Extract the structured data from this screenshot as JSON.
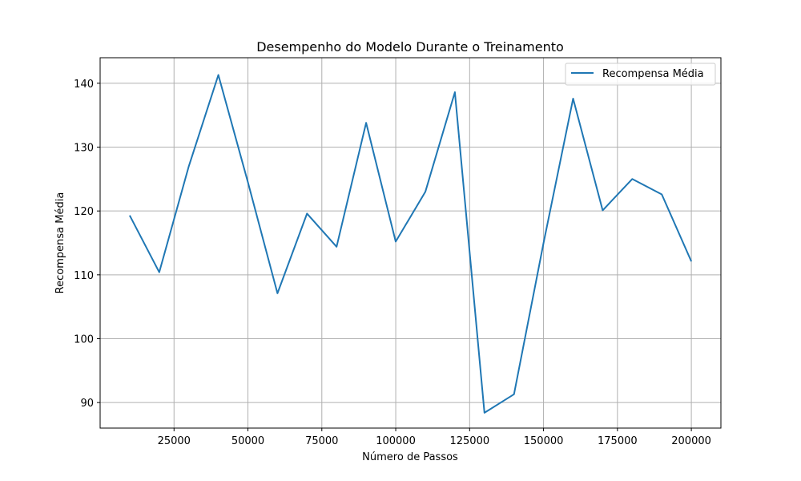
{
  "chart_data": {
    "type": "line",
    "title": "Desempenho do Modelo Durante o Treinamento",
    "xlabel": "Número de Passos",
    "ylabel": "Recompensa Média",
    "xlim": [
      0,
      210000
    ],
    "ylim": [
      86,
      144
    ],
    "xticks": [
      25000,
      50000,
      75000,
      100000,
      125000,
      150000,
      175000,
      200000
    ],
    "yticks": [
      90,
      100,
      110,
      120,
      130,
      140
    ],
    "grid": true,
    "legend_position": "top-right",
    "series": [
      {
        "name": "Recompensa Média",
        "color": "#1f77b4",
        "x": [
          10000,
          20000,
          30000,
          40000,
          50000,
          60000,
          70000,
          80000,
          90000,
          100000,
          110000,
          120000,
          130000,
          140000,
          150000,
          160000,
          170000,
          180000,
          190000,
          200000
        ],
        "y": [
          119.3,
          110.4,
          127.0,
          141.3,
          124.5,
          107.1,
          119.6,
          114.4,
          133.8,
          115.2,
          123.0,
          138.6,
          88.4,
          91.3,
          115.0,
          137.6,
          120.1,
          125.0,
          122.6,
          112.1
        ]
      }
    ]
  }
}
